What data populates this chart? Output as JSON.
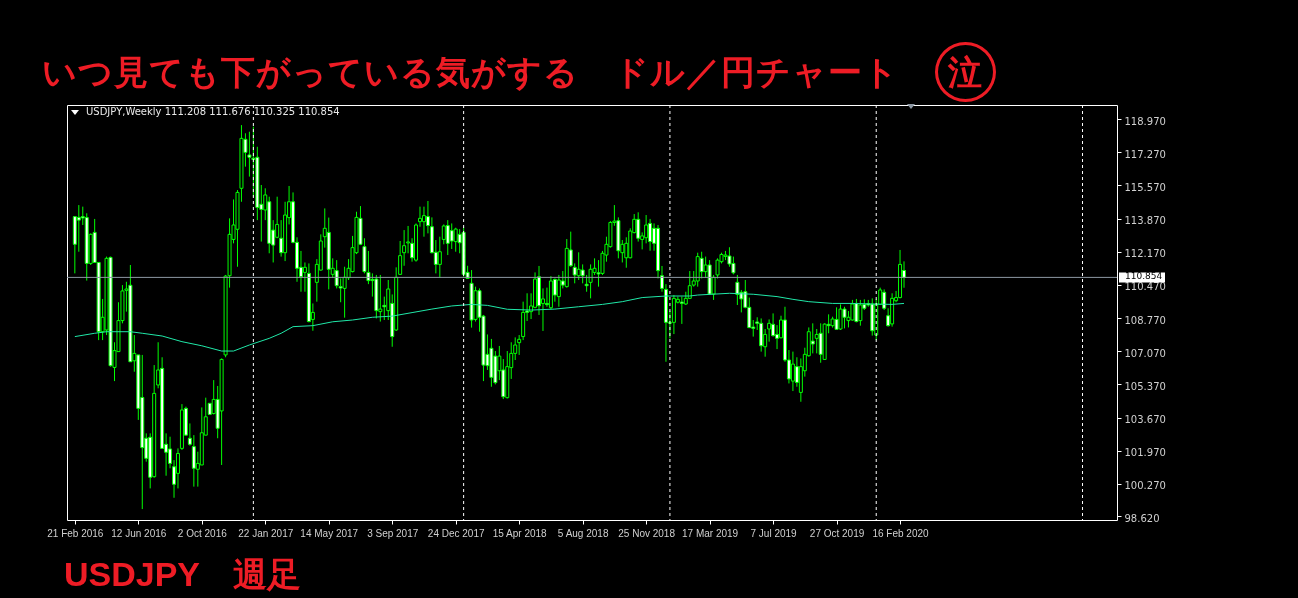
{
  "chart_data": {
    "type": "candlestick",
    "title": "いつ見ても下がっている気がする　ドル／円チャート　泣",
    "annotations": [
      "USDJPY,Weekly  111.208 111.676 110.325 110.854",
      "USDJPY　週足"
    ],
    "xlim": [
      "2016-02-16",
      "2021-02-24"
    ],
    "ylim": [
      98.42,
      119.69
    ],
    "xticks": [
      {
        "value": "2016-02-21",
        "label": "21 Feb 2016"
      },
      {
        "value": "2016-06-12",
        "label": "12 Jun 2016"
      },
      {
        "value": "2016-10-02",
        "label": "2 Oct 2016"
      },
      {
        "value": "2017-01-22",
        "label": "22 Jan 2017"
      },
      {
        "value": "2017-05-14",
        "label": "14 May 2017"
      },
      {
        "value": "2017-09-03",
        "label": "3 Sep 2017"
      },
      {
        "value": "2017-12-24",
        "label": "24 Dec 2017"
      },
      {
        "value": "2018-04-15",
        "label": "15 Apr 2018"
      },
      {
        "value": "2018-08-05",
        "label": "5 Aug 2018"
      },
      {
        "value": "2018-11-25",
        "label": "25 Nov 2018"
      },
      {
        "value": "2019-03-17",
        "label": "17 Mar 2019"
      },
      {
        "value": "2019-07-07",
        "label": "7 Jul 2019"
      },
      {
        "value": "2019-10-27",
        "label": "27 Oct 2019"
      },
      {
        "value": "2020-02-16",
        "label": "16 Feb 2020"
      }
    ],
    "yticks": [
      {
        "value": 98.62,
        "label": "98.620"
      },
      {
        "value": 100.27,
        "label": "100.270"
      },
      {
        "value": 101.97,
        "label": "101.970"
      },
      {
        "value": 103.67,
        "label": "103.670"
      },
      {
        "value": 105.37,
        "label": "105.370"
      },
      {
        "value": 107.07,
        "label": "107.070"
      },
      {
        "value": 108.77,
        "label": "108.770"
      },
      {
        "value": 110.47,
        "label": "110.470"
      },
      {
        "value": 112.17,
        "label": "112.170"
      },
      {
        "value": 113.87,
        "label": "113.870"
      },
      {
        "value": 115.57,
        "label": "115.570"
      },
      {
        "value": 117.27,
        "label": "117.270"
      },
      {
        "value": 118.97,
        "label": "118.970"
      }
    ],
    "ref_lines": [
      {
        "axis": "y",
        "value": 110.854,
        "label": "110.854",
        "color": "#8c97a3"
      },
      {
        "axis": "x",
        "value": "2017-01-01",
        "color": "#ffffff",
        "line_style": "dashed"
      },
      {
        "axis": "x",
        "value": "2018-01-07",
        "color": "#ffffff",
        "line_style": "dashed"
      },
      {
        "axis": "x",
        "value": "2019-01-06",
        "color": "#ffffff",
        "line_style": "dashed"
      },
      {
        "axis": "x",
        "value": "2020-01-05",
        "color": "#ffffff",
        "line_style": "dashed"
      },
      {
        "axis": "x",
        "value": "2021-01-03",
        "color": "#ffffff",
        "line_style": "dashed"
      }
    ],
    "series": [
      {
        "type": "candlestick",
        "color": "#00ff00",
        "x": [
          "2016-02-21",
          "2016-02-28",
          "2016-03-06",
          "2016-03-13",
          "2016-03-20",
          "2016-03-27",
          "2016-04-03",
          "2016-04-10",
          "2016-04-17",
          "2016-04-24",
          "2016-05-01",
          "2016-05-08",
          "2016-05-15",
          "2016-05-22",
          "2016-05-29",
          "2016-06-05",
          "2016-06-12",
          "2016-06-19",
          "2016-06-26",
          "2016-07-03",
          "2016-07-10",
          "2016-07-17",
          "2016-07-24",
          "2016-07-31",
          "2016-08-07",
          "2016-08-14",
          "2016-08-21",
          "2016-08-28",
          "2016-09-04",
          "2016-09-11",
          "2016-09-18",
          "2016-09-25",
          "2016-10-02",
          "2016-10-09",
          "2016-10-16",
          "2016-10-23",
          "2016-10-30",
          "2016-11-06",
          "2016-11-13",
          "2016-11-20",
          "2016-11-27",
          "2016-12-04",
          "2016-12-11",
          "2016-12-18",
          "2016-12-25",
          "2017-01-01",
          "2017-01-08",
          "2017-01-15",
          "2017-01-22",
          "2017-01-29",
          "2017-02-05",
          "2017-02-12",
          "2017-02-19",
          "2017-02-26",
          "2017-03-05",
          "2017-03-12",
          "2017-03-19",
          "2017-03-26",
          "2017-04-02",
          "2017-04-09",
          "2017-04-16",
          "2017-04-23",
          "2017-04-30",
          "2017-05-07",
          "2017-05-14",
          "2017-05-21",
          "2017-05-28",
          "2017-06-04",
          "2017-06-11",
          "2017-06-18",
          "2017-06-25",
          "2017-07-02",
          "2017-07-09",
          "2017-07-16",
          "2017-07-23",
          "2017-07-30",
          "2017-08-06",
          "2017-08-13",
          "2017-08-20",
          "2017-08-27",
          "2017-09-03",
          "2017-09-10",
          "2017-09-17",
          "2017-09-24",
          "2017-10-01",
          "2017-10-08",
          "2017-10-15",
          "2017-10-22",
          "2017-10-29",
          "2017-11-05",
          "2017-11-12",
          "2017-11-19",
          "2017-11-26",
          "2017-12-03",
          "2017-12-10",
          "2017-12-17",
          "2017-12-24",
          "2017-12-31",
          "2018-01-07",
          "2018-01-14",
          "2018-01-21",
          "2018-01-28",
          "2018-02-04",
          "2018-02-11",
          "2018-02-18",
          "2018-02-25",
          "2018-03-04",
          "2018-03-11",
          "2018-03-18",
          "2018-03-25",
          "2018-04-01",
          "2018-04-08",
          "2018-04-15",
          "2018-04-22",
          "2018-04-29",
          "2018-05-06",
          "2018-05-13",
          "2018-05-20",
          "2018-05-27",
          "2018-06-03",
          "2018-06-10",
          "2018-06-17",
          "2018-06-24",
          "2018-07-01",
          "2018-07-08",
          "2018-07-15",
          "2018-07-22",
          "2018-07-29",
          "2018-08-05",
          "2018-08-12",
          "2018-08-19",
          "2018-08-26",
          "2018-09-02",
          "2018-09-09",
          "2018-09-16",
          "2018-09-23",
          "2018-09-30",
          "2018-10-07",
          "2018-10-14",
          "2018-10-21",
          "2018-10-28",
          "2018-11-04",
          "2018-11-11",
          "2018-11-18",
          "2018-11-25",
          "2018-12-02",
          "2018-12-09",
          "2018-12-16",
          "2018-12-23",
          "2018-12-30",
          "2019-01-06",
          "2019-01-13",
          "2019-01-20",
          "2019-01-27",
          "2019-02-03",
          "2019-02-10",
          "2019-02-17",
          "2019-02-24",
          "2019-03-03",
          "2019-03-10",
          "2019-03-17",
          "2019-03-24",
          "2019-03-31",
          "2019-04-07",
          "2019-04-14",
          "2019-04-21",
          "2019-04-28",
          "2019-05-05",
          "2019-05-12",
          "2019-05-19",
          "2019-05-26",
          "2019-06-02",
          "2019-06-09",
          "2019-06-16",
          "2019-06-23",
          "2019-06-30",
          "2019-07-07",
          "2019-07-14",
          "2019-07-21",
          "2019-07-28",
          "2019-08-04",
          "2019-08-11",
          "2019-08-18",
          "2019-08-25",
          "2019-09-01",
          "2019-09-08",
          "2019-09-15",
          "2019-09-22",
          "2019-09-29",
          "2019-10-06",
          "2019-10-13",
          "2019-10-20",
          "2019-10-27",
          "2019-11-03",
          "2019-11-10",
          "2019-11-17",
          "2019-11-24",
          "2019-12-01",
          "2019-12-08",
          "2019-12-15",
          "2019-12-22",
          "2019-12-29",
          "2020-01-05",
          "2020-01-12",
          "2020-01-19",
          "2020-01-26",
          "2020-02-02",
          "2020-02-09",
          "2020-02-16",
          "2020-02-23"
        ],
        "ohlc": [
          [
            113.97,
            113.97,
            111.06,
            112.55
          ],
          [
            113.93,
            114.56,
            112.17,
            113.79
          ],
          [
            113.97,
            114.48,
            113.54,
            113.9
          ],
          [
            113.92,
            114.14,
            110.69,
            111.57
          ],
          [
            111.57,
            113.11,
            111.49,
            113.06
          ],
          [
            113.16,
            113.85,
            111.62,
            111.62
          ],
          [
            111.62,
            111.62,
            107.64,
            108.07
          ],
          [
            108.07,
            109.75,
            107.64,
            108.81
          ],
          [
            108.16,
            111.92,
            107.9,
            111.83
          ],
          [
            111.88,
            111.92,
            106.28,
            106.33
          ],
          [
            106.24,
            107.53,
            105.54,
            107.1
          ],
          [
            107.05,
            109.58,
            107.05,
            108.64
          ],
          [
            108.64,
            110.46,
            108.5,
            110.16
          ],
          [
            110.19,
            110.63,
            109.1,
            110.26
          ],
          [
            110.45,
            111.49,
            106.53,
            106.53
          ],
          [
            106.58,
            107.9,
            106.02,
            106.96
          ],
          [
            106.88,
            106.88,
            103.55,
            104.14
          ],
          [
            104.7,
            106.88,
            98.98,
            102.13
          ],
          [
            102.61,
            102.86,
            101.41,
            101.58
          ],
          [
            102.66,
            102.86,
            100.04,
            100.61
          ],
          [
            100.64,
            106.36,
            100.59,
            104.91
          ],
          [
            105.34,
            107.53,
            105.17,
            106.11
          ],
          [
            106.19,
            106.76,
            102.09,
            102.09
          ],
          [
            102.3,
            102.86,
            100.69,
            101.89
          ],
          [
            102.06,
            102.69,
            101.07,
            101.32
          ],
          [
            101.15,
            101.49,
            99.56,
            100.25
          ],
          [
            100.81,
            102.09,
            100.04,
            101.83
          ],
          [
            102.09,
            104.36,
            102.01,
            104.06
          ],
          [
            104.14,
            104.23,
            102.74,
            102.77
          ],
          [
            102.61,
            103.37,
            102.23,
            102.3
          ],
          [
            102.18,
            102.77,
            100.13,
            101.07
          ],
          [
            101.02,
            101.92,
            100.13,
            101.32
          ],
          [
            101.24,
            104.19,
            101.24,
            102.89
          ],
          [
            102.77,
            104.69,
            102.77,
            103.71
          ],
          [
            104.4,
            104.4,
            103.8,
            103.83
          ],
          [
            103.88,
            105.59,
            103.83,
            104.6
          ],
          [
            104.6,
            105.29,
            102.61,
            103.12
          ],
          [
            104.01,
            106.7,
            101.24,
            106.65
          ],
          [
            106.88,
            110.98,
            106.76,
            110.92
          ],
          [
            110.94,
            113.88,
            110.33,
            113.06
          ],
          [
            112.8,
            114.85,
            112.6,
            113.54
          ],
          [
            113.32,
            115.33,
            111.4,
            115.21
          ],
          [
            115.42,
            118.66,
            114.73,
            117.98
          ],
          [
            117.93,
            118.24,
            116.53,
            117.26
          ],
          [
            117.13,
            118.32,
            116.02,
            117.01
          ],
          [
            116.96,
            118.58,
            114.99,
            116.9
          ],
          [
            117.01,
            117.55,
            113.79,
            114.44
          ],
          [
            114.6,
            115.59,
            112.69,
            114.34
          ],
          [
            114.31,
            115.42,
            113.79,
            115.08
          ],
          [
            114.73,
            114.99,
            112.09,
            112.6
          ],
          [
            113.28,
            113.79,
            111.62,
            112.51
          ],
          [
            112.91,
            114.99,
            112.86,
            113.57
          ],
          [
            112.86,
            113.79,
            111.92,
            112.12
          ],
          [
            112.12,
            114.73,
            111.69,
            114.05
          ],
          [
            113.92,
            115.54,
            113.57,
            114.73
          ],
          [
            114.73,
            115.21,
            112.6,
            112.65
          ],
          [
            112.65,
            112.91,
            110.63,
            111.32
          ],
          [
            111.37,
            112.21,
            110.12,
            110.89
          ],
          [
            111.11,
            111.62,
            110.12,
            111.37
          ],
          [
            111.06,
            111.57,
            108.55,
            108.59
          ],
          [
            108.7,
            109.52,
            108.12,
            109.06
          ],
          [
            110.6,
            111.79,
            109.61,
            111.52
          ],
          [
            111.23,
            113.06,
            111.2,
            112.72
          ],
          [
            112.94,
            114.39,
            112.38,
            113.37
          ],
          [
            113.16,
            113.92,
            110.24,
            111.27
          ],
          [
            111.01,
            111.83,
            110.84,
            111.32
          ],
          [
            111.2,
            111.74,
            110.29,
            110.43
          ],
          [
            110.38,
            110.8,
            109.58,
            110.31
          ],
          [
            110.29,
            111.4,
            108.79,
            110.86
          ],
          [
            110.84,
            111.79,
            110.72,
            111.32
          ],
          [
            111.15,
            112.98,
            111.11,
            112.38
          ],
          [
            112.12,
            114.22,
            112.05,
            113.93
          ],
          [
            113.88,
            114.51,
            112.51,
            112.55
          ],
          [
            112.43,
            112.86,
            111.06,
            111.15
          ],
          [
            111.11,
            112.21,
            110.51,
            110.69
          ],
          [
            110.75,
            111.06,
            109.87,
            110.69
          ],
          [
            110.77,
            110.98,
            108.75,
            109.15
          ],
          [
            109.1,
            110.98,
            108.59,
            109.23
          ],
          [
            109.42,
            109.87,
            108.67,
            109.35
          ],
          [
            109.15,
            110.72,
            108.67,
            110.26
          ],
          [
            109.52,
            109.98,
            107.3,
            107.82
          ],
          [
            108.16,
            111.37,
            108.11,
            110.86
          ],
          [
            111.01,
            112.72,
            110.98,
            111.97
          ],
          [
            112.12,
            113.28,
            111.45,
            112.48
          ],
          [
            112.62,
            113.49,
            112.09,
            112.67
          ],
          [
            112.6,
            112.86,
            111.66,
            111.86
          ],
          [
            111.74,
            113.62,
            111.66,
            113.54
          ],
          [
            113.71,
            114.48,
            113.45,
            113.88
          ],
          [
            113.71,
            114.48,
            112.94,
            114.02
          ],
          [
            113.97,
            114.77,
            113.11,
            113.51
          ],
          [
            113.45,
            113.93,
            112.09,
            112.12
          ],
          [
            112.14,
            112.77,
            111.06,
            111.52
          ],
          [
            111.52,
            112.94,
            110.84,
            112.17
          ],
          [
            112.8,
            113.57,
            112.55,
            113.49
          ],
          [
            113.51,
            113.79,
            112.0,
            112.6
          ],
          [
            113.25,
            113.62,
            112.31,
            112.72
          ],
          [
            112.69,
            113.4,
            112.17,
            113.33
          ],
          [
            113.06,
            113.33,
            112.09,
            112.63
          ],
          [
            113.16,
            113.42,
            110.89,
            111.01
          ],
          [
            111.11,
            111.45,
            110.77,
            110.8
          ],
          [
            110.55,
            111.23,
            108.28,
            108.67
          ],
          [
            108.7,
            110.38,
            108.59,
            110.17
          ],
          [
            110.17,
            110.29,
            108.07,
            108.81
          ],
          [
            108.87,
            108.93,
            105.54,
            106.36
          ],
          [
            106.91,
            107.93,
            106.11,
            106.33
          ],
          [
            107.22,
            107.7,
            105.25,
            105.73
          ],
          [
            106.82,
            107.08,
            105.37,
            105.46
          ],
          [
            106.07,
            107.34,
            105.59,
            106.82
          ],
          [
            106.11,
            106.67,
            104.62,
            104.74
          ],
          [
            104.69,
            107.08,
            104.65,
            106.28
          ],
          [
            106.23,
            107.53,
            105.65,
            106.96
          ],
          [
            106.96,
            107.78,
            106.62,
            107.39
          ],
          [
            107.51,
            107.9,
            106.88,
            107.68
          ],
          [
            107.82,
            109.61,
            107.64,
            109.06
          ],
          [
            109.13,
            110.04,
            108.62,
            109.06
          ],
          [
            109.1,
            110.04,
            108.72,
            109.39
          ],
          [
            109.32,
            111.11,
            109.27,
            110.77
          ],
          [
            110.89,
            111.44,
            108.93,
            109.4
          ],
          [
            109.52,
            110.29,
            108.11,
            109.75
          ],
          [
            109.52,
            110.33,
            109.35,
            109.46
          ],
          [
            109.3,
            110.92,
            109.23,
            110.67
          ],
          [
            110.75,
            110.8,
            109.61,
            109.95
          ],
          [
            109.87,
            110.98,
            109.35,
            110.72
          ],
          [
            110.67,
            111.18,
            110.29,
            110.46
          ],
          [
            110.38,
            112.82,
            110.33,
            112.34
          ],
          [
            112.26,
            113.2,
            111.4,
            111.45
          ],
          [
            111.37,
            111.57,
            110.55,
            110.98
          ],
          [
            110.94,
            112.14,
            110.72,
            111.27
          ],
          [
            111.23,
            111.52,
            110.55,
            110.94
          ],
          [
            110.5,
            110.98,
            110.12,
            110.43
          ],
          [
            110.6,
            111.52,
            109.78,
            111.27
          ],
          [
            111.11,
            111.83,
            110.98,
            111.32
          ],
          [
            111.09,
            111.74,
            110.38,
            111.03
          ],
          [
            111.06,
            112.21,
            110.98,
            112.09
          ],
          [
            112.0,
            112.94,
            111.66,
            112.55
          ],
          [
            112.43,
            113.74,
            112.38,
            113.67
          ],
          [
            113.67,
            114.56,
            113.5,
            113.74
          ],
          [
            113.76,
            113.93,
            111.83,
            112.22
          ],
          [
            112.12,
            112.77,
            111.62,
            112.55
          ],
          [
            111.86,
            112.91,
            111.35,
            112.6
          ],
          [
            111.86,
            113.37,
            111.83,
            113.23
          ],
          [
            113.15,
            114.1,
            113.11,
            113.83
          ],
          [
            113.83,
            114.19,
            112.69,
            112.86
          ],
          [
            112.8,
            113.16,
            112.29,
            112.98
          ],
          [
            112.89,
            114.05,
            112.6,
            113.54
          ],
          [
            113.62,
            113.85,
            112.22,
            112.69
          ],
          [
            113.37,
            113.62,
            112.22,
            112.6
          ],
          [
            113.37,
            113.54,
            110.8,
            111.2
          ],
          [
            110.94,
            111.44,
            110.12,
            110.29
          ],
          [
            110.24,
            110.51,
            106.53,
            108.55
          ],
          [
            108.5,
            109.13,
            107.73,
            108.55
          ],
          [
            108.55,
            109.95,
            107.95,
            109.78
          ],
          [
            109.58,
            109.87,
            109.52,
            109.73
          ],
          [
            109.59,
            109.87,
            108.47,
            109.52
          ],
          [
            109.49,
            110.12,
            109.44,
            109.78
          ],
          [
            109.78,
            111.18,
            109.75,
            110.43
          ],
          [
            110.46,
            111.18,
            110.38,
            110.67
          ],
          [
            110.67,
            112.12,
            110.38,
            111.92
          ],
          [
            111.83,
            112.17,
            110.8,
            111.15
          ],
          [
            111.15,
            111.92,
            110.84,
            111.49
          ],
          [
            111.49,
            111.74,
            109.95,
            110.0
          ],
          [
            110.0,
            110.98,
            109.7,
            110.86
          ],
          [
            110.98,
            111.83,
            110.8,
            111.74
          ],
          [
            111.66,
            112.12,
            111.57,
            112.03
          ],
          [
            111.93,
            112.21,
            111.74,
            112.0
          ],
          [
            111.95,
            112.4,
            111.4,
            111.54
          ],
          [
            111.57,
            111.92,
            111.01,
            111.09
          ],
          [
            110.6,
            110.98,
            109.44,
            109.98
          ],
          [
            110.09,
            110.21,
            109.06,
            109.75
          ],
          [
            110.12,
            110.72,
            109.27,
            109.32
          ],
          [
            109.32,
            109.82,
            108.28,
            108.28
          ],
          [
            108.31,
            108.67,
            107.82,
            108.24
          ],
          [
            108.57,
            108.81,
            108.16,
            108.5
          ],
          [
            108.5,
            108.75,
            107.05,
            107.35
          ],
          [
            107.3,
            108.21,
            106.79,
            107.93
          ],
          [
            108.21,
            108.7,
            107.56,
            108.5
          ],
          [
            108.45,
            109.01,
            107.82,
            107.87
          ],
          [
            107.93,
            108.41,
            107.18,
            107.73
          ],
          [
            107.76,
            108.89,
            107.73,
            108.67
          ],
          [
            108.67,
            109.35,
            106.53,
            106.62
          ],
          [
            106.62,
            107.13,
            105.42,
            105.65
          ],
          [
            105.54,
            107.05,
            105.03,
            106.41
          ],
          [
            106.28,
            106.76,
            105.25,
            105.47
          ],
          [
            104.96,
            106.7,
            104.48,
            106.28
          ],
          [
            106.07,
            107.25,
            105.77,
            106.91
          ],
          [
            106.84,
            108.29,
            106.79,
            108.07
          ],
          [
            107.59,
            108.5,
            106.96,
            107.44
          ],
          [
            107.73,
            108.21,
            106.96,
            107.93
          ],
          [
            107.99,
            108.5,
            106.48,
            106.91
          ],
          [
            106.65,
            108.5,
            106.62,
            108.46
          ],
          [
            108.45,
            108.96,
            107.99,
            108.38
          ],
          [
            108.38,
            108.84,
            108.28,
            108.72
          ],
          [
            108.7,
            109.32,
            108.16,
            108.19
          ],
          [
            108.21,
            109.47,
            108.16,
            109.23
          ],
          [
            109.23,
            109.35,
            108.24,
            108.81
          ],
          [
            108.64,
            109.13,
            108.29,
            108.81
          ],
          [
            108.67,
            109.7,
            108.64,
            109.49
          ],
          [
            109.52,
            109.75,
            108.55,
            108.59
          ],
          [
            108.64,
            109.7,
            108.38,
            109.44
          ],
          [
            109.47,
            109.73,
            109.18,
            109.27
          ],
          [
            109.51,
            109.7,
            109.35,
            109.44
          ],
          [
            109.49,
            109.78,
            107.87,
            108.12
          ],
          [
            107.9,
            109.75,
            107.64,
            109.49
          ],
          [
            109.47,
            110.33,
            109.44,
            110.21
          ],
          [
            110.09,
            110.24,
            109.18,
            109.27
          ],
          [
            108.89,
            109.27,
            108.33,
            108.38
          ],
          [
            108.47,
            110.04,
            108.33,
            109.78
          ],
          [
            109.66,
            110.16,
            109.58,
            109.82
          ],
          [
            109.82,
            112.26,
            109.78,
            111.52
          ],
          [
            111.208,
            111.676,
            110.325,
            110.854
          ]
        ]
      },
      {
        "type": "line",
        "color": "#20e8a8",
        "x": [
          "2016-02-21",
          "2016-03-27",
          "2016-04-17",
          "2016-05-29",
          "2016-06-19",
          "2016-07-24",
          "2016-08-28",
          "2016-10-02",
          "2016-11-06",
          "2016-11-27",
          "2016-12-25",
          "2017-01-29",
          "2017-02-19",
          "2017-03-12",
          "2017-04-16",
          "2017-05-21",
          "2017-06-25",
          "2017-07-30",
          "2017-09-03",
          "2017-10-08",
          "2017-11-12",
          "2017-12-17",
          "2018-01-21",
          "2018-02-18",
          "2018-03-25",
          "2018-05-06",
          "2018-06-17",
          "2018-07-29",
          "2018-09-09",
          "2018-10-14",
          "2018-11-18",
          "2018-12-30",
          "2019-02-10",
          "2019-02-24",
          "2019-04-21",
          "2019-06-02",
          "2019-07-14",
          "2019-08-11",
          "2019-09-08",
          "2019-10-20",
          "2019-11-24",
          "2019-12-29",
          "2020-02-02",
          "2020-02-23"
        ],
        "values": [
          107.82,
          107.99,
          108.07,
          108.07,
          107.99,
          107.85,
          107.56,
          107.35,
          107.08,
          107.08,
          107.39,
          107.73,
          107.99,
          108.33,
          108.38,
          108.58,
          108.67,
          108.81,
          108.87,
          109.05,
          109.23,
          109.39,
          109.47,
          109.42,
          109.22,
          109.18,
          109.23,
          109.35,
          109.47,
          109.61,
          109.82,
          109.9,
          109.9,
          109.95,
          110.04,
          109.99,
          109.87,
          109.73,
          109.61,
          109.52,
          109.52,
          109.49,
          109.47,
          109.52
        ]
      }
    ]
  }
}
